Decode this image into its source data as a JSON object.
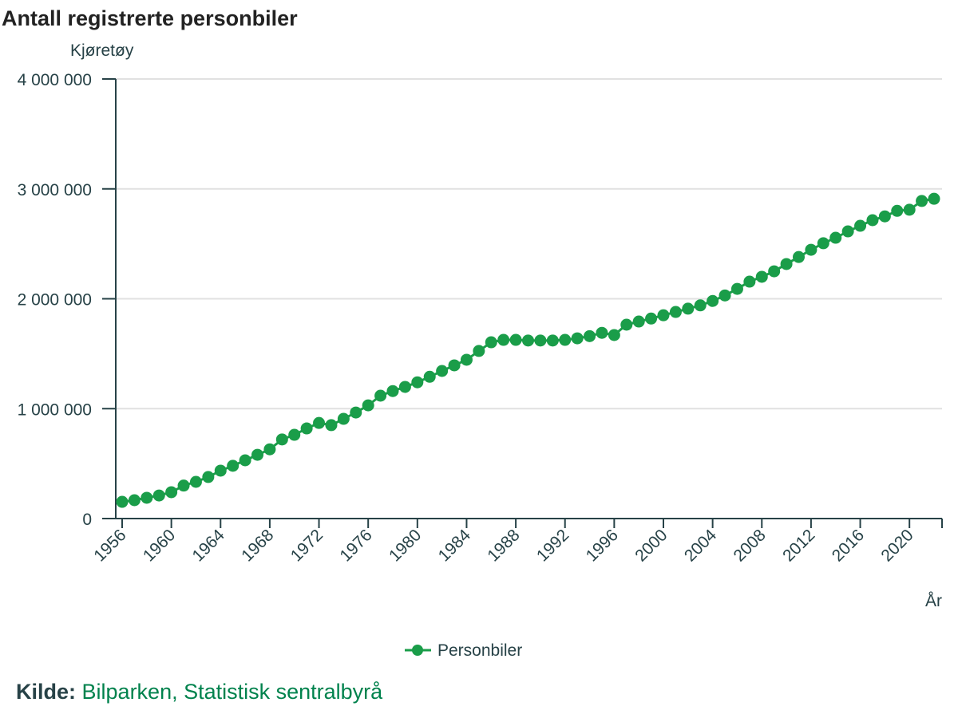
{
  "chart_data": {
    "type": "line",
    "title": "Antall registrerte personbiler",
    "ylabel": "Kjøretøy",
    "xlabel": "År",
    "ylim": [
      0,
      4000000
    ],
    "yticks": [
      0,
      1000000,
      2000000,
      3000000,
      4000000
    ],
    "ytick_labels": [
      "0",
      "1 000 000",
      "2 000 000",
      "3 000 000",
      "4 000 000"
    ],
    "xticks": [
      1956,
      1960,
      1964,
      1968,
      1972,
      1976,
      1980,
      1984,
      1988,
      1992,
      1996,
      2000,
      2004,
      2008,
      2012,
      2016,
      2020
    ],
    "xlim": [
      1956,
      2022
    ],
    "grid": "horizontal",
    "legend_position": "bottom-center",
    "color": "#1a9d49",
    "series": [
      {
        "name": "Personbiler",
        "x": [
          1956,
          1957,
          1958,
          1959,
          1960,
          1961,
          1962,
          1963,
          1964,
          1965,
          1966,
          1967,
          1968,
          1969,
          1970,
          1971,
          1972,
          1973,
          1974,
          1975,
          1976,
          1977,
          1978,
          1979,
          1980,
          1981,
          1982,
          1983,
          1984,
          1985,
          1986,
          1987,
          1988,
          1989,
          1990,
          1991,
          1992,
          1993,
          1994,
          1995,
          1996,
          1997,
          1998,
          1999,
          2000,
          2001,
          2002,
          2003,
          2004,
          2005,
          2006,
          2007,
          2008,
          2009,
          2010,
          2011,
          2012,
          2013,
          2014,
          2015,
          2016,
          2017,
          2018,
          2019,
          2020,
          2021,
          2022
        ],
        "values": [
          152000,
          167000,
          189000,
          210000,
          240000,
          300000,
          334000,
          378000,
          436000,
          480000,
          530000,
          580000,
          630000,
          720000,
          762000,
          820000,
          870000,
          850000,
          907000,
          965000,
          1030000,
          1118000,
          1160000,
          1198000,
          1240000,
          1290000,
          1343000,
          1394000,
          1445000,
          1525000,
          1604000,
          1626000,
          1626000,
          1620000,
          1620000,
          1620000,
          1626000,
          1640000,
          1660000,
          1690000,
          1670000,
          1764000,
          1793000,
          1820000,
          1850000,
          1880000,
          1910000,
          1940000,
          1980000,
          2030000,
          2090000,
          2156000,
          2200000,
          2250000,
          2316000,
          2380000,
          2446000,
          2505000,
          2555000,
          2613000,
          2664000,
          2715000,
          2750000,
          2800000,
          2810000,
          2890000,
          2910000
        ]
      }
    ]
  },
  "source": {
    "label": "Kilde:",
    "text": "Bilparken, Statistisk sentralbyrå"
  }
}
